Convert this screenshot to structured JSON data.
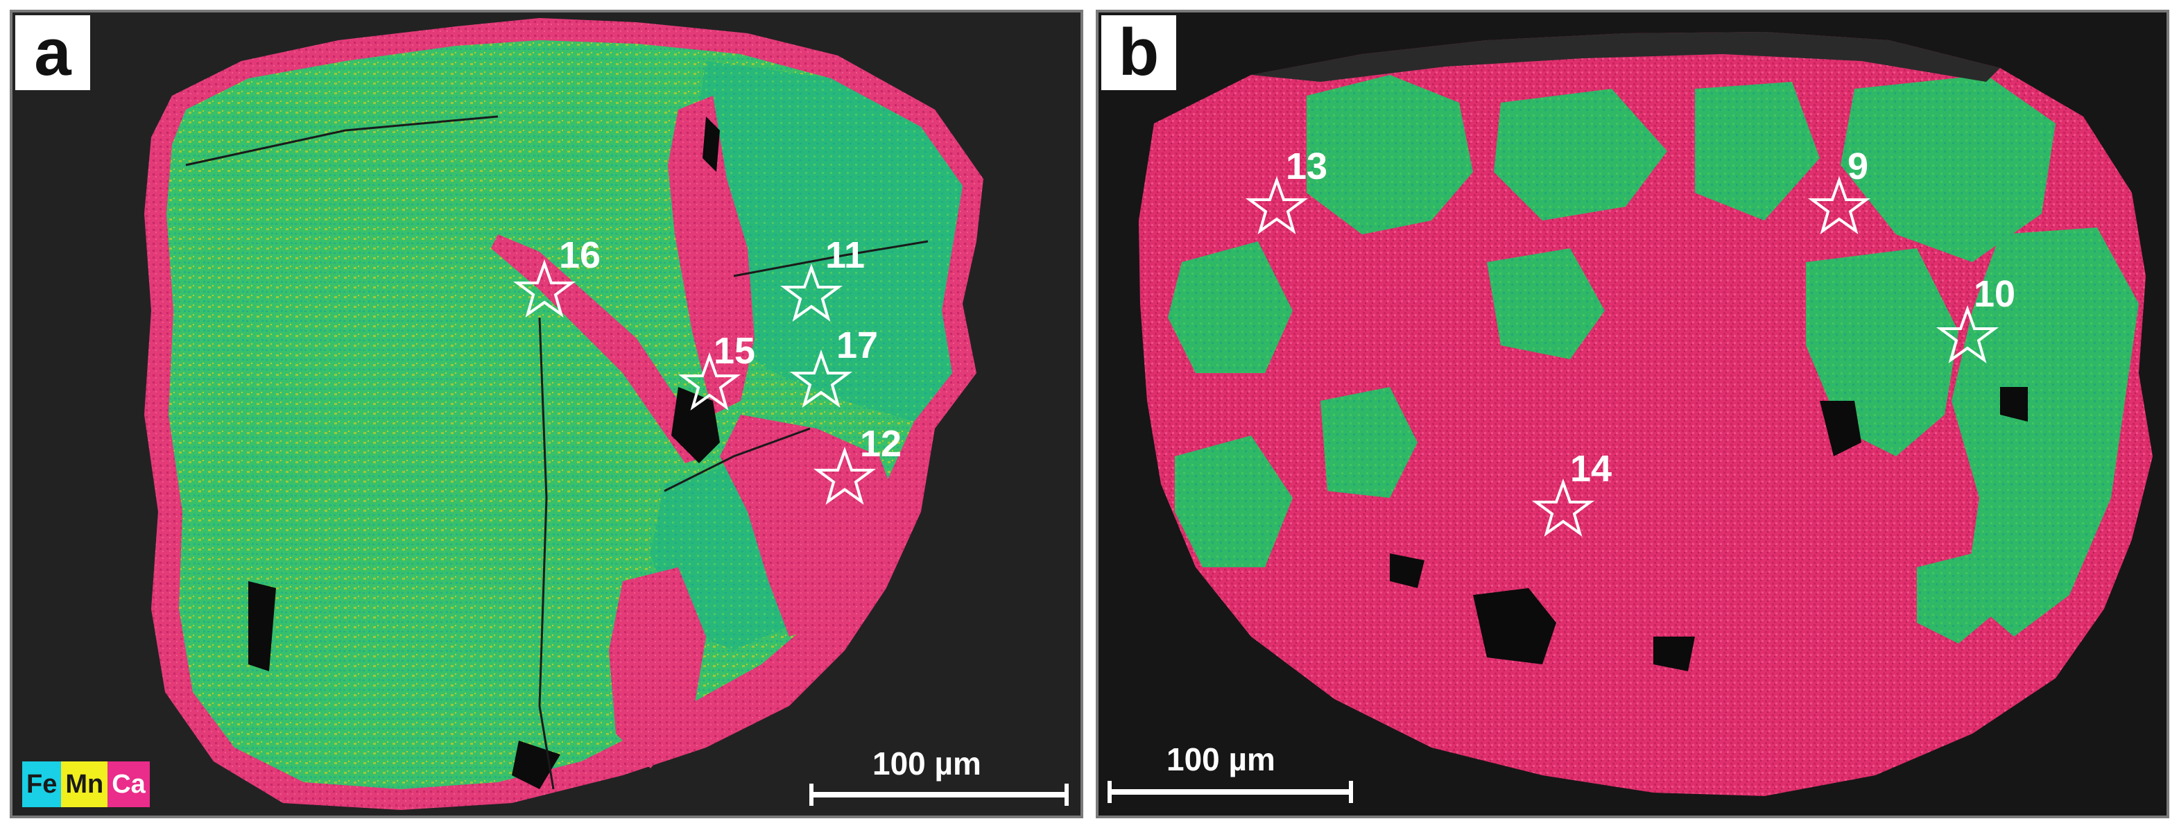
{
  "panels": [
    {
      "label": "a",
      "scale_bar": "100 µm",
      "legend": [
        {
          "text": "Fe",
          "color": "#19d0e6"
        },
        {
          "text": "Mn",
          "color": "#f2ef1e"
        },
        {
          "text": "Ca",
          "color": "#ea2c8a"
        }
      ],
      "points": [
        "16",
        "11",
        "15",
        "17",
        "12"
      ]
    },
    {
      "label": "b",
      "scale_bar": "100 µm",
      "points": [
        "13",
        "9",
        "10",
        "14"
      ]
    }
  ],
  "colors": {
    "fe_mn_phase": "#2fbf6a",
    "ca_phase": "#e0306f",
    "pore": "#0b0b0b"
  }
}
